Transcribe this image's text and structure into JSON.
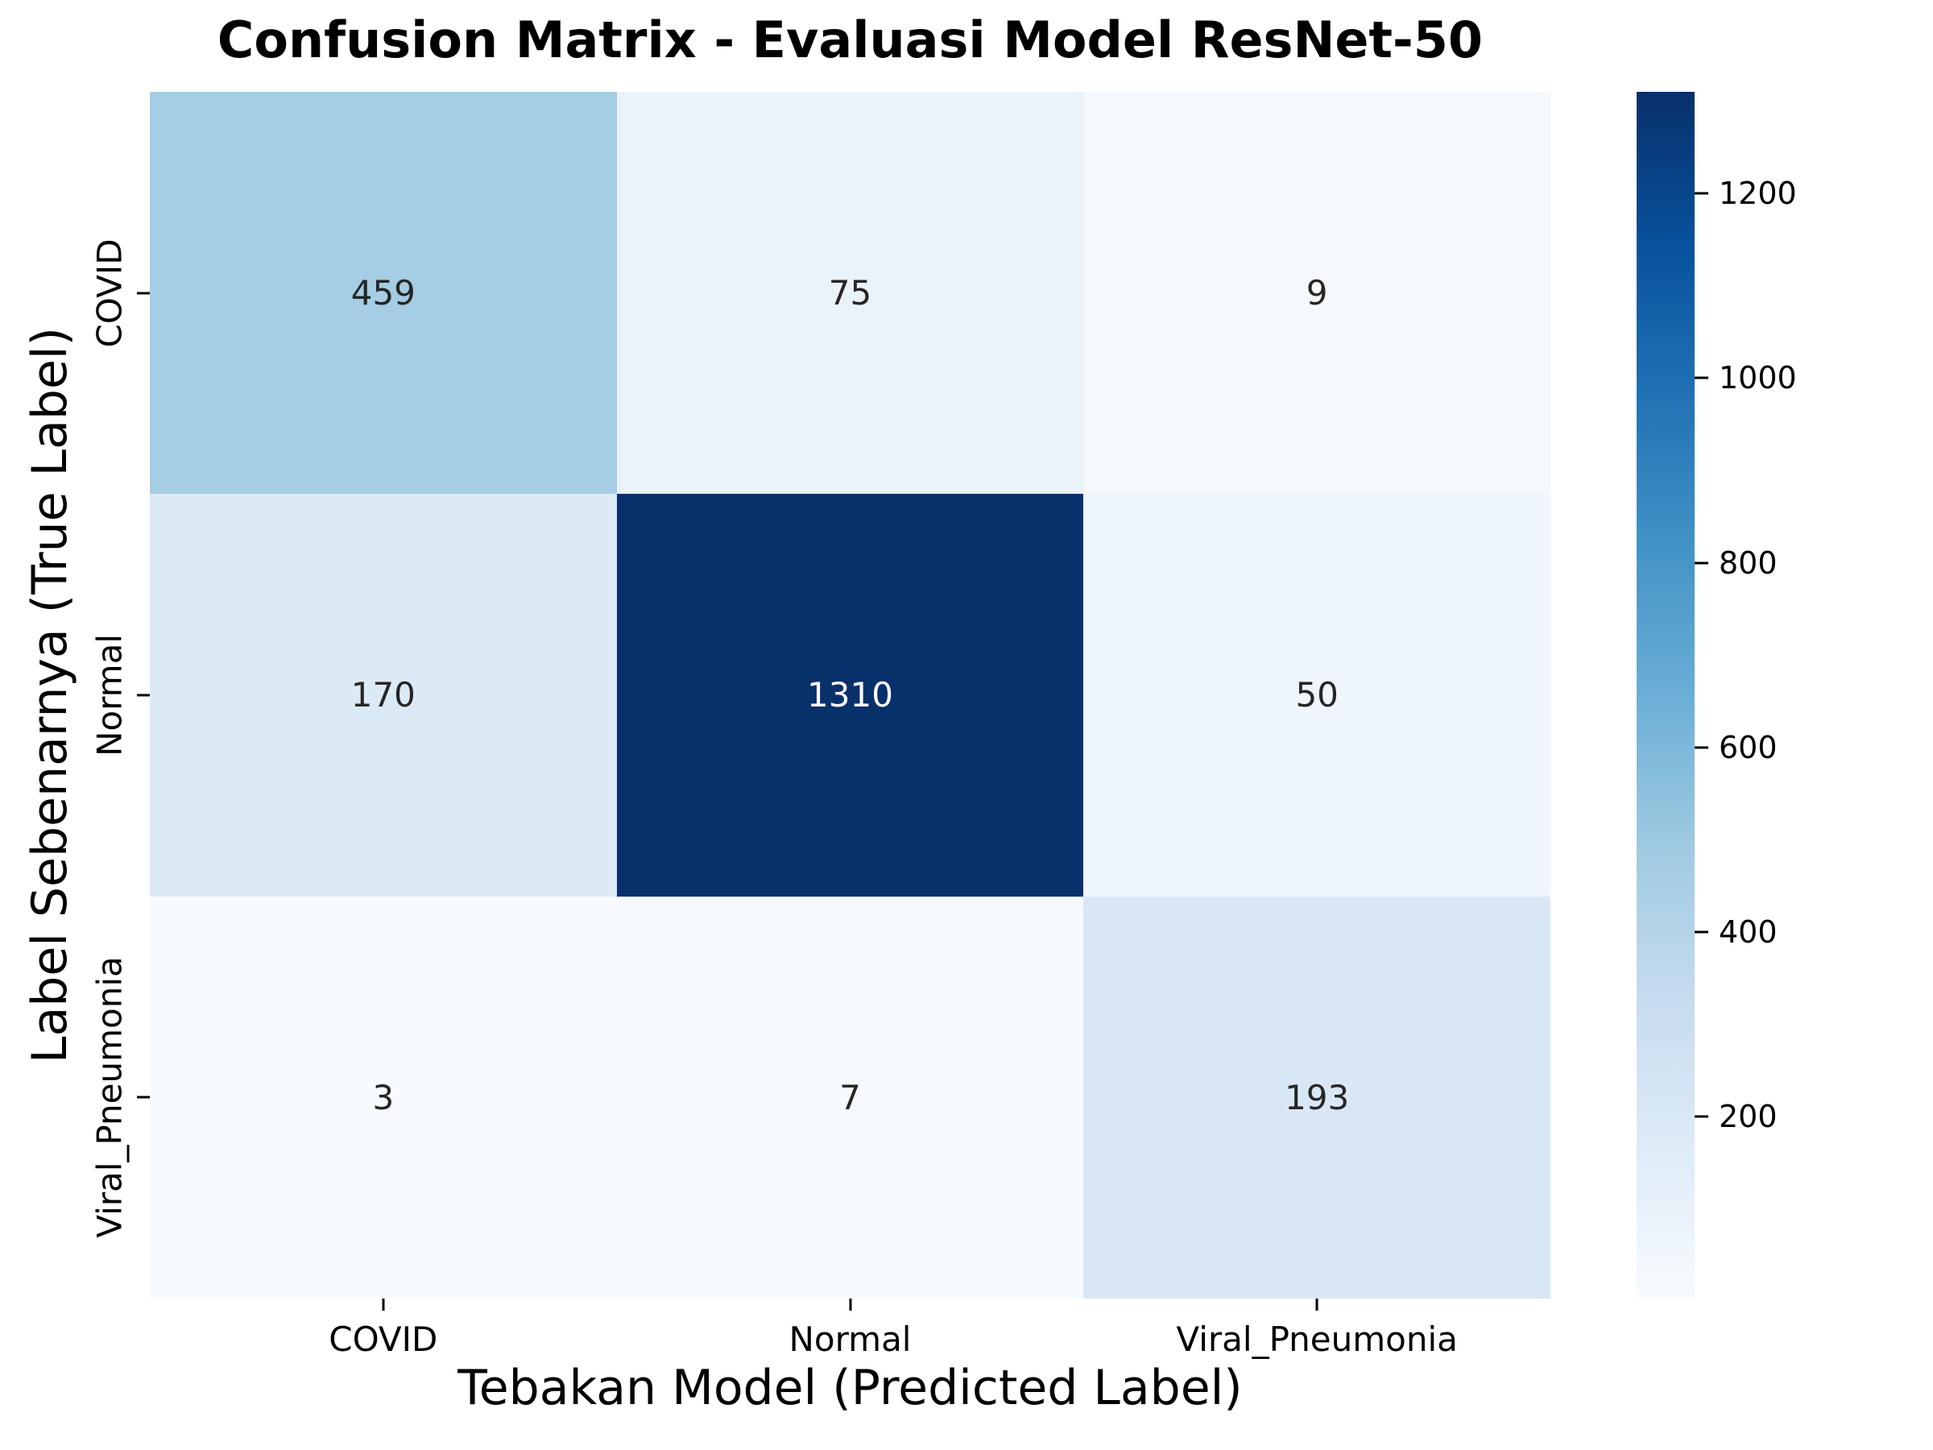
{
  "figure": {
    "title": "Confusion Matrix - Evaluasi Model ResNet-50"
  },
  "chart_data": {
    "type": "heatmap",
    "title": "Confusion Matrix - Evaluasi Model ResNet-50",
    "xlabel": "Tebakan Model (Predicted Label)",
    "ylabel": "Label Sebenarnya (True Label)",
    "x_categories": [
      "COVID",
      "Normal",
      "Viral_Pneumonia"
    ],
    "y_categories": [
      "COVID",
      "Normal",
      "Viral_Pneumonia"
    ],
    "matrix": [
      [
        459,
        75,
        9
      ],
      [
        170,
        1310,
        50
      ],
      [
        3,
        7,
        193
      ]
    ],
    "cell_colors": [
      [
        "#a5cde3",
        "#eaf2fa",
        "#f5f9fd"
      ],
      [
        "#dceaf5",
        "#08306b",
        "#eff5fc"
      ],
      [
        "#f7fbff",
        "#f6fafe",
        "#d9e7f4"
      ]
    ],
    "cell_text_colors": [
      [
        "#262626",
        "#262626",
        "#262626"
      ],
      [
        "#262626",
        "#ffffff",
        "#262626"
      ],
      [
        "#262626",
        "#262626",
        "#262626"
      ]
    ],
    "colormap": "Blues",
    "vmin": 3,
    "vmax": 1310,
    "colorbar_ticks": [
      200,
      400,
      600,
      800,
      1000,
      1200
    ],
    "colorbar_gradient_top_to_bottom": [
      "#08306b",
      "#08519c",
      "#2171b5",
      "#4292c6",
      "#6baed6",
      "#9ecae1",
      "#c6dbef",
      "#deebf7",
      "#f7fbff"
    ],
    "grid": false,
    "legend_position": "right-colorbar"
  },
  "colors": {
    "background": "#ffffff",
    "tick_color": "#000000",
    "annotation_dark": "#262626",
    "annotation_light": "#ffffff"
  }
}
